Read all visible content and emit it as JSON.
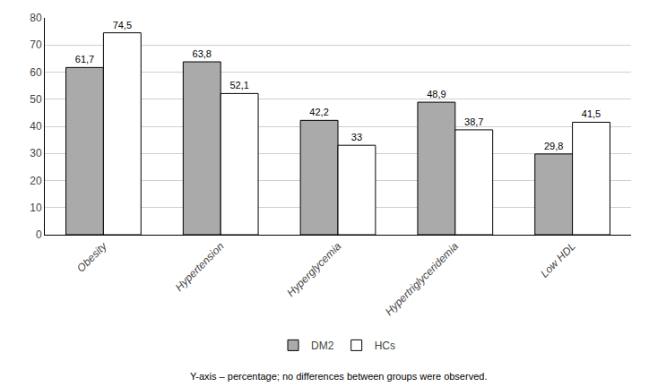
{
  "chart_data": {
    "type": "bar",
    "categories": [
      "Obesity",
      "Hypertension",
      "Hyperglycemia",
      "Hypertriglyceridemia",
      "Low HDL"
    ],
    "series": [
      {
        "name": "DM2",
        "color": "#aaaaaa",
        "values": [
          61.7,
          63.8,
          42.2,
          48.9,
          29.8
        ],
        "value_labels": [
          "61,7",
          "63,8",
          "42,2",
          "48,9",
          "29,8"
        ]
      },
      {
        "name": "HCs",
        "color": "#ffffff",
        "values": [
          74.5,
          52.1,
          33,
          38.7,
          41.5
        ],
        "value_labels": [
          "74,5",
          "52,1",
          "33",
          "38,7",
          "41,5"
        ]
      }
    ],
    "ylim": [
      0,
      80
    ],
    "yticks": [
      0,
      10,
      20,
      30,
      40,
      50,
      60,
      70,
      80
    ],
    "grid": true,
    "legend": "bottom",
    "data_labels": true,
    "annotations": [
      "Y-axis – percentage; no differences between groups were observed."
    ]
  }
}
